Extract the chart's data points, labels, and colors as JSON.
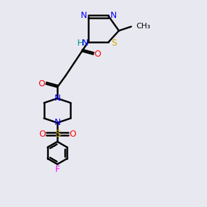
{
  "bg_color": "#e8e8f0",
  "bond_color": "#000000",
  "bond_width": 1.8,
  "figsize": [
    3.0,
    3.0
  ],
  "dpi": 100,
  "colors": {
    "N": "#0000ff",
    "S": "#ccaa00",
    "O": "#ff0000",
    "F": "#ff00ff",
    "H": "#008b8b",
    "C": "#000000",
    "bond": "#000000"
  }
}
